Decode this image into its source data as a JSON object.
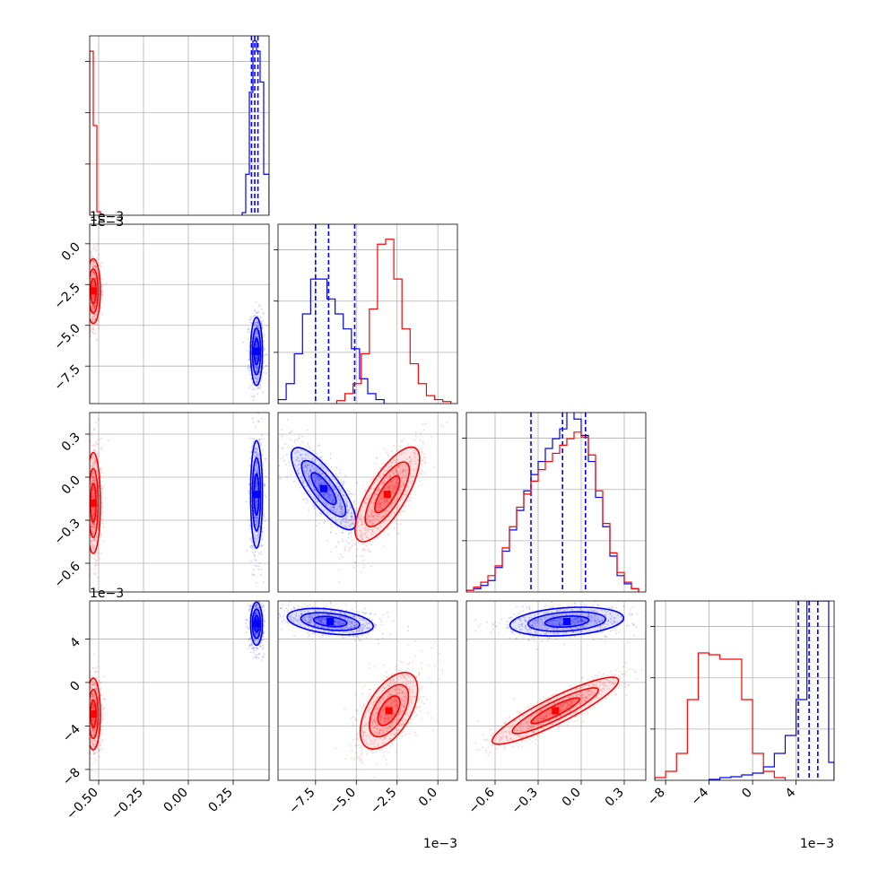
{
  "colors": {
    "series_a": "#0000ff",
    "series_b": "#ff0000",
    "grid": "#b0b0b0",
    "axis": "#555555"
  },
  "chart_data": {
    "type": "corner",
    "grid": true,
    "variables": [
      {
        "ticks": [
          -0.5,
          -0.25,
          0.0,
          0.25
        ],
        "tick_labels": [
          "−0.50",
          "−0.25",
          "0.00",
          "0.25"
        ],
        "range": [
          -0.55,
          0.45
        ],
        "offset_label": ""
      },
      {
        "ticks": [
          -7.5,
          -5.0,
          -2.5,
          0.0
        ],
        "tick_labels": [
          "−7.5",
          "−5.0",
          "−2.5",
          "0.0"
        ],
        "range": [
          -9.8,
          1.2
        ],
        "offset_label": "1e−3"
      },
      {
        "ticks": [
          -0.6,
          -0.3,
          0.0,
          0.3
        ],
        "tick_labels": [
          "−0.6",
          "−0.3",
          "0.0",
          "0.3"
        ],
        "range": [
          -0.8,
          0.45
        ],
        "offset_label": ""
      },
      {
        "ticks": [
          -8,
          -4,
          0,
          4
        ],
        "tick_labels": [
          "−8",
          "−4",
          "0",
          "4"
        ],
        "range": [
          -9,
          7.5
        ],
        "offset_label": "1e−3"
      }
    ],
    "diag_offset_labels": [
      "1e−3",
      "",
      "",
      ""
    ],
    "row_offset_labels": [
      "",
      "1e−3",
      "",
      "1e−3"
    ],
    "diagonals": [
      {
        "ymax": 3.5,
        "series": [
          {
            "name": "",
            "color": "blue",
            "edges": [
              0.3,
              0.32,
              0.34,
              0.36,
              0.38,
              0.4,
              0.42,
              0.45
            ],
            "counts": [
              0.05,
              0.8,
              2.4,
              3.4,
              3.2,
              2.6,
              0.8
            ],
            "quantiles": [
              0.352,
              0.37,
              0.388
            ]
          },
          {
            "name": "",
            "color": "red",
            "edges": [
              -0.55,
              -0.53,
              -0.51,
              -0.49,
              -0.47
            ],
            "counts": [
              3.2,
              1.75,
              0.07,
              0.01
            ],
            "quantiles": []
          }
        ]
      },
      {
        "ymax": 0.18,
        "series": [
          {
            "name": "",
            "color": "blue",
            "edges": [
              -9.8,
              -9.3,
              -8.8,
              -8.3,
              -7.8,
              -7.3,
              -6.8,
              -6.3,
              -5.8,
              -5.3,
              -4.8,
              -4.3,
              -3.8,
              -3.3
            ],
            "counts": [
              0.004,
              0.02,
              0.05,
              0.09,
              0.125,
              0.125,
              0.105,
              0.09,
              0.075,
              0.055,
              0.025,
              0.01,
              0.004
            ],
            "quantiles": [
              -7.5,
              -6.7,
              -5.1
            ]
          },
          {
            "name": "",
            "color": "red",
            "edges": [
              -6.2,
              -5.7,
              -5.2,
              -4.7,
              -4.2,
              -3.7,
              -3.2,
              -2.7,
              -2.2,
              -1.7,
              -1.2,
              -0.7,
              -0.2,
              0.3,
              0.8
            ],
            "counts": [
              0.003,
              0.01,
              0.02,
              0.05,
              0.095,
              0.16,
              0.165,
              0.125,
              0.075,
              0.04,
              0.02,
              0.008,
              0.004,
              0.002
            ],
            "quantiles": []
          }
        ]
      },
      {
        "ymax": 0.11,
        "series": [
          {
            "name": "",
            "color": "blue",
            "edges": [
              -0.8,
              -0.75,
              -0.7,
              -0.65,
              -0.6,
              -0.55,
              -0.5,
              -0.45,
              -0.4,
              -0.35,
              -0.3,
              -0.25,
              -0.2,
              -0.15,
              -0.1,
              -0.05,
              0.0,
              0.05,
              0.1,
              0.15,
              0.2,
              0.25,
              0.3,
              0.35,
              0.4
            ],
            "counts": [
              0.001,
              0.002,
              0.004,
              0.007,
              0.015,
              0.025,
              0.038,
              0.05,
              0.062,
              0.072,
              0.08,
              0.088,
              0.094,
              0.1,
              0.112,
              0.106,
              0.096,
              0.08,
              0.058,
              0.04,
              0.022,
              0.01,
              0.005,
              0.002
            ],
            "quantiles": [
              -0.35,
              -0.13,
              0.03
            ]
          },
          {
            "name": "",
            "color": "red",
            "edges": [
              -0.8,
              -0.75,
              -0.7,
              -0.65,
              -0.6,
              -0.55,
              -0.5,
              -0.45,
              -0.4,
              -0.35,
              -0.3,
              -0.25,
              -0.2,
              -0.15,
              -0.1,
              -0.05,
              0.0,
              0.05,
              0.1,
              0.15,
              0.2,
              0.25,
              0.3,
              0.35,
              0.4
            ],
            "counts": [
              0.001,
              0.003,
              0.006,
              0.01,
              0.016,
              0.027,
              0.04,
              0.052,
              0.06,
              0.068,
              0.075,
              0.08,
              0.085,
              0.09,
              0.094,
              0.098,
              0.095,
              0.084,
              0.062,
              0.042,
              0.024,
              0.012,
              0.006,
              0.002
            ],
            "quantiles": []
          }
        ]
      },
      {
        "ymax": 0.2,
        "series": [
          {
            "name": "",
            "color": "blue",
            "edges": [
              -4,
              -3,
              -2,
              -1,
              0,
              1,
              2,
              3,
              4,
              5,
              6,
              7,
              7.5
            ],
            "counts": [
              0.001,
              0.003,
              0.004,
              0.006,
              0.008,
              0.015,
              0.03,
              0.05,
              0.09,
              0.2,
              0.2,
              0.02
            ],
            "quantiles": [
              4.2,
              5.2,
              6.0
            ]
          },
          {
            "name": "",
            "color": "red",
            "edges": [
              -9,
              -8,
              -7,
              -6,
              -5,
              -4,
              -3,
              -2,
              -1,
              0,
              1,
              2,
              3
            ],
            "counts": [
              0.003,
              0.01,
              0.03,
              0.09,
              0.142,
              0.14,
              0.135,
              0.135,
              0.09,
              0.03,
              0.01,
              0.003
            ],
            "quantiles": []
          }
        ]
      }
    ],
    "joint": [
      {
        "row": 1,
        "col": 0,
        "series": [
          {
            "color": "blue",
            "mean": [
              0.38,
              -6.6
            ],
            "sd": [
              0.015,
              0.95
            ],
            "rho": 0.0,
            "bend": 0
          },
          {
            "color": "red",
            "mean": [
              -0.53,
              -2.9
            ],
            "sd": [
              0.018,
              0.9
            ],
            "rho": 0.0,
            "bend": 0
          }
        ]
      },
      {
        "row": 2,
        "col": 0,
        "series": [
          {
            "color": "blue",
            "mean": [
              0.38,
              -0.12
            ],
            "sd": [
              0.015,
              0.17
            ],
            "rho": 0.0,
            "bend": 0
          },
          {
            "color": "red",
            "mean": [
              -0.53,
              -0.18
            ],
            "sd": [
              0.018,
              0.16
            ],
            "rho": 0.0,
            "bend": 0
          }
        ]
      },
      {
        "row": 2,
        "col": 1,
        "series": [
          {
            "color": "blue",
            "mean": [
              -7.0,
              -0.08
            ],
            "sd": [
              0.9,
              0.13
            ],
            "rho": -0.8,
            "bend": 0
          },
          {
            "color": "red",
            "mean": [
              -3.1,
              -0.12
            ],
            "sd": [
              0.9,
              0.15
            ],
            "rho": 0.75,
            "bend": 0
          }
        ]
      },
      {
        "row": 3,
        "col": 0,
        "series": [
          {
            "color": "blue",
            "mean": [
              0.38,
              5.4
            ],
            "sd": [
              0.015,
              0.9
            ],
            "rho": 0.0,
            "bend": 0
          },
          {
            "color": "red",
            "mean": [
              -0.53,
              -2.9
            ],
            "sd": [
              0.018,
              1.5
            ],
            "rho": 0.0,
            "bend": 0
          }
        ]
      },
      {
        "row": 3,
        "col": 1,
        "series": [
          {
            "color": "blue",
            "mean": [
              -6.6,
              5.6
            ],
            "sd": [
              1.2,
              0.55
            ],
            "rho": -0.35,
            "bend": 0
          },
          {
            "color": "red",
            "mean": [
              -3.0,
              -2.6
            ],
            "sd": [
              0.8,
              1.6
            ],
            "rho": 0.55,
            "bend": 0
          }
        ]
      },
      {
        "row": 3,
        "col": 2,
        "series": [
          {
            "color": "blue",
            "mean": [
              -0.1,
              5.6
            ],
            "sd": [
              0.18,
              0.6
            ],
            "rho": 0.25,
            "bend": 0
          },
          {
            "color": "red",
            "mean": [
              -0.18,
              -2.6
            ],
            "sd": [
              0.2,
              1.4
            ],
            "rho": 0.9,
            "bend": 0
          }
        ]
      }
    ]
  }
}
